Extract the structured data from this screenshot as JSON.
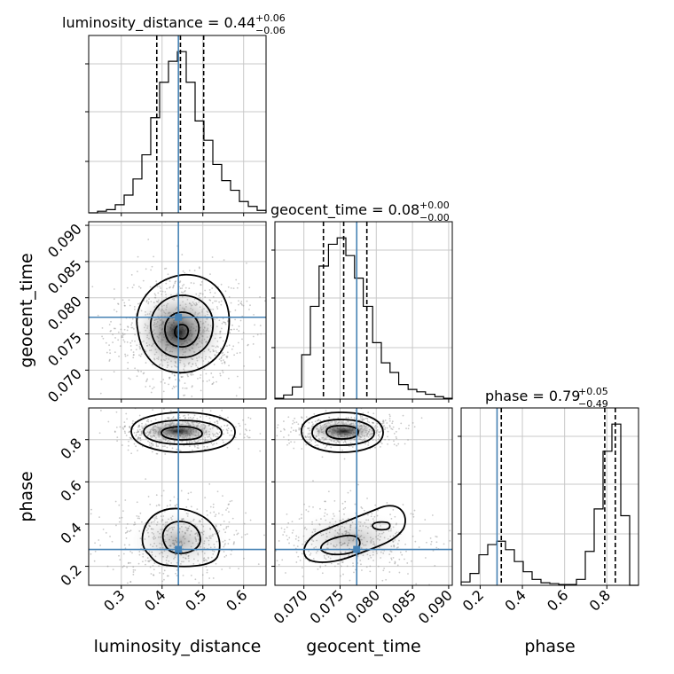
{
  "chart_data": {
    "type": "corner",
    "parameters": [
      "luminosity_distance",
      "geocent_time",
      "phase"
    ],
    "truths": {
      "luminosity_distance": 0.44,
      "geocent_time": 0.0773,
      "phase": 0.28
    },
    "truth_color": "#4682b4",
    "titles": [
      {
        "param": "luminosity_distance",
        "text": "luminosity_distance = 0.44",
        "plus": "+0.06",
        "minus": "−0.06"
      },
      {
        "param": "geocent_time",
        "text": "geocent_time = 0.08",
        "plus": "+0.00",
        "minus": "−0.00"
      },
      {
        "param": "phase",
        "text": "phase = 0.79",
        "plus": "+0.05",
        "minus": "−0.49"
      }
    ],
    "axes": {
      "luminosity_distance": {
        "range": [
          0.22,
          0.655
        ],
        "ticks": [
          0.3,
          0.4,
          0.5,
          0.6
        ],
        "tick_labels": [
          "0.3",
          "0.4",
          "0.5",
          "0.6"
        ]
      },
      "geocent_time": {
        "range": [
          0.066,
          0.0905
        ],
        "ticks": [
          0.07,
          0.075,
          0.08,
          0.085,
          0.09
        ],
        "tick_labels": [
          "0.070",
          "0.075",
          "0.080",
          "0.085",
          "0.090"
        ]
      },
      "phase": {
        "range": [
          0.11,
          0.95
        ],
        "ticks": [
          0.2,
          0.4,
          0.6,
          0.8
        ],
        "tick_labels": [
          "0.2",
          "0.4",
          "0.6",
          "0.8"
        ]
      }
    },
    "quantiles": {
      "luminosity_distance": [
        0.387,
        0.445,
        0.502
      ],
      "geocent_time": [
        0.0727,
        0.0755,
        0.0787
      ],
      "phase": [
        0.3,
        0.79,
        0.84
      ]
    },
    "histograms": {
      "luminosity_distance": {
        "edges": [
          0.22,
          0.2417,
          0.2635,
          0.2852,
          0.307,
          0.3287,
          0.3505,
          0.3722,
          0.394,
          0.4157,
          0.4375,
          0.4592,
          0.481,
          0.5027,
          0.5245,
          0.5462,
          0.568,
          0.5897,
          0.6115,
          0.6332,
          0.655
        ],
        "counts": [
          0,
          2,
          4,
          10,
          22,
          42,
          72,
          118,
          162,
          188,
          200,
          162,
          114,
          90,
          60,
          40,
          28,
          14,
          8,
          3
        ]
      },
      "geocent_time": {
        "edges": [
          0.066,
          0.0672,
          0.0684,
          0.0697,
          0.0709,
          0.0721,
          0.0734,
          0.0746,
          0.0758,
          0.077,
          0.0782,
          0.0795,
          0.0807,
          0.0819,
          0.0831,
          0.0844,
          0.0856,
          0.0868,
          0.0881,
          0.0893,
          0.0905
        ],
        "counts": [
          1,
          5,
          15,
          55,
          115,
          165,
          192,
          200,
          178,
          150,
          115,
          70,
          45,
          33,
          18,
          12,
          9,
          6,
          3,
          1
        ]
      },
      "phase": {
        "edges": [
          0.11,
          0.152,
          0.194,
          0.236,
          0.278,
          0.32,
          0.362,
          0.404,
          0.446,
          0.488,
          0.53,
          0.572,
          0.614,
          0.656,
          0.698,
          0.74,
          0.782,
          0.824,
          0.866,
          0.908,
          0.95
        ],
        "counts": [
          4,
          14,
          36,
          48,
          52,
          42,
          28,
          16,
          7,
          3,
          2,
          1,
          1,
          7,
          40,
          90,
          158,
          190,
          82,
          0
        ]
      }
    },
    "axis_labels": {
      "luminosity_distance": "luminosity_distance",
      "geocent_time": "geocent_time",
      "phase": "phase"
    },
    "grid": true
  }
}
